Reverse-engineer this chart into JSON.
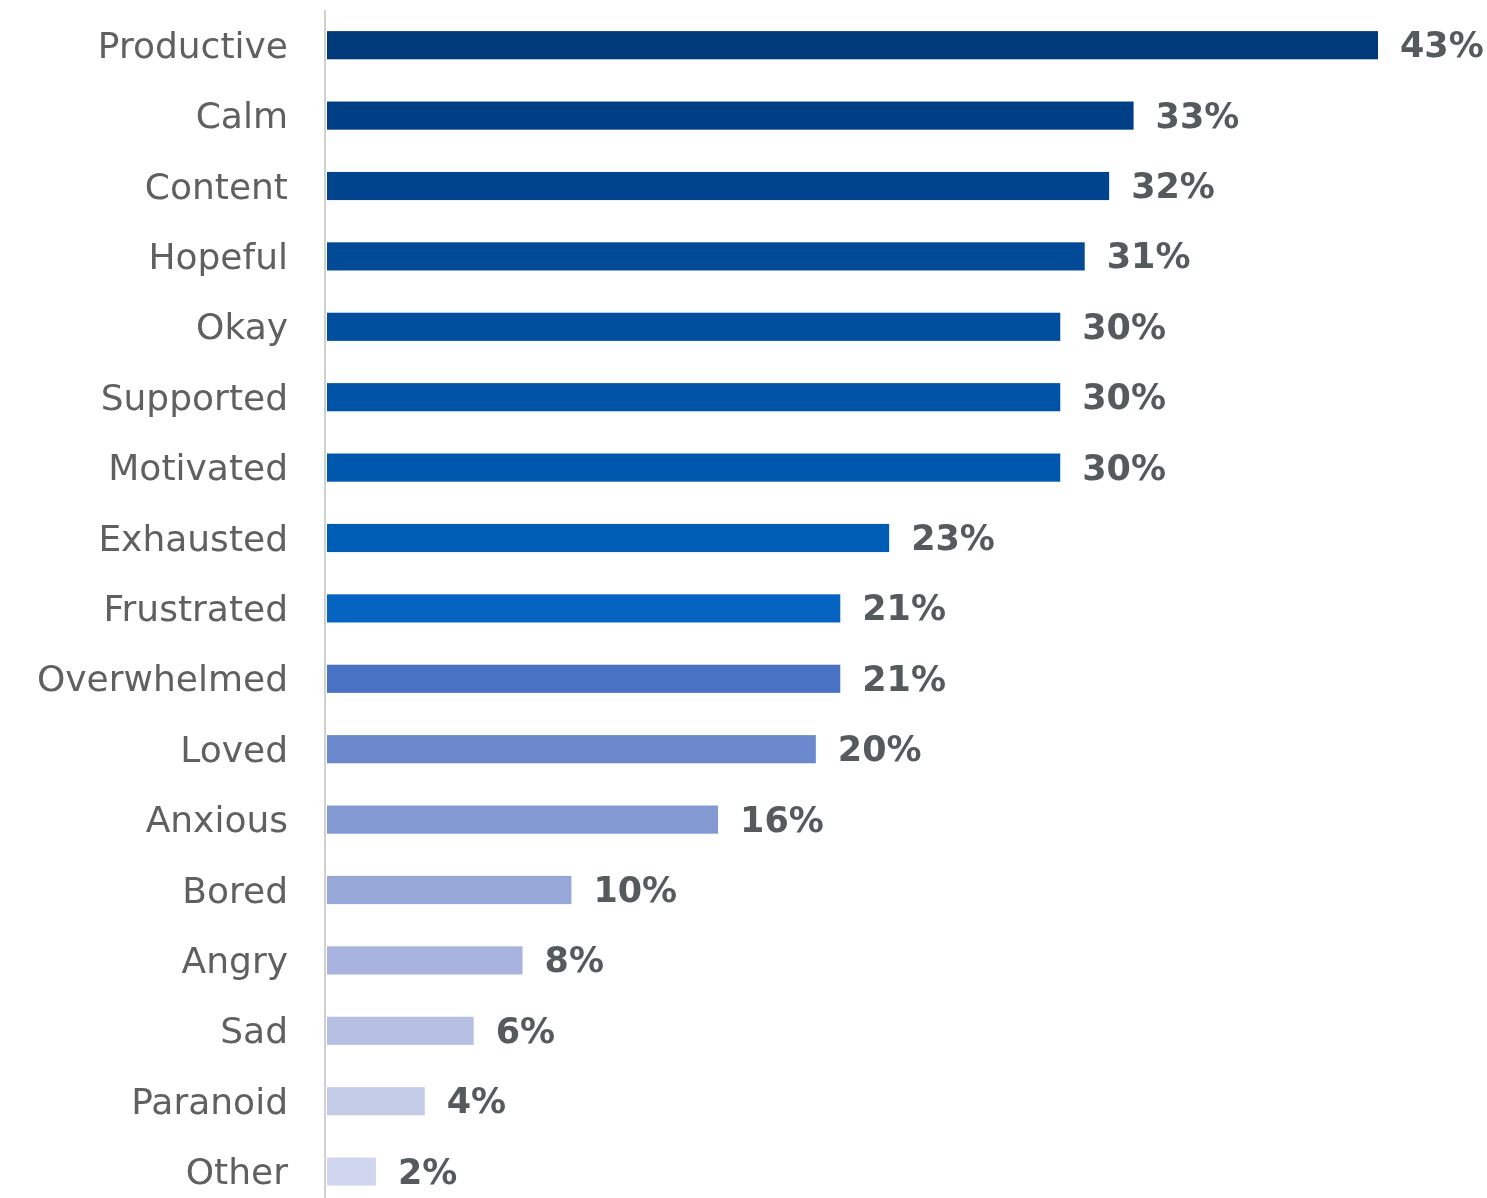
{
  "chart_data": {
    "type": "bar",
    "orientation": "horizontal",
    "value_labels": [
      "43%",
      "33%",
      "32%",
      "31%",
      "30%",
      "30%",
      "30%",
      "23%",
      "21%",
      "21%",
      "20%",
      "16%",
      "10%",
      "8%",
      "6%",
      "4%",
      "2%"
    ],
    "categories": [
      "Productive",
      "Calm",
      "Content",
      "Hopeful",
      "Okay",
      "Supported",
      "Motivated",
      "Exhausted",
      "Frustrated",
      "Overwhelmed",
      "Loved",
      "Anxious",
      "Bored",
      "Angry",
      "Sad",
      "Paranoid",
      "Other"
    ],
    "values": [
      43,
      33,
      32,
      31,
      30,
      30,
      30,
      23,
      21,
      21,
      20,
      16,
      10,
      8,
      6,
      4,
      2
    ],
    "colors": [
      "#003a7a",
      "#003f85",
      "#00448d",
      "#004a96",
      "#004e9e",
      "#0053a6",
      "#0058ae",
      "#005db5",
      "#0563c1",
      "#4a72c4",
      "#6b88cc",
      "#8399d2",
      "#97a7d8",
      "#a8b4dd",
      "#b5bfe2",
      "#c3cbe7",
      "#d0d6ed"
    ]
  }
}
